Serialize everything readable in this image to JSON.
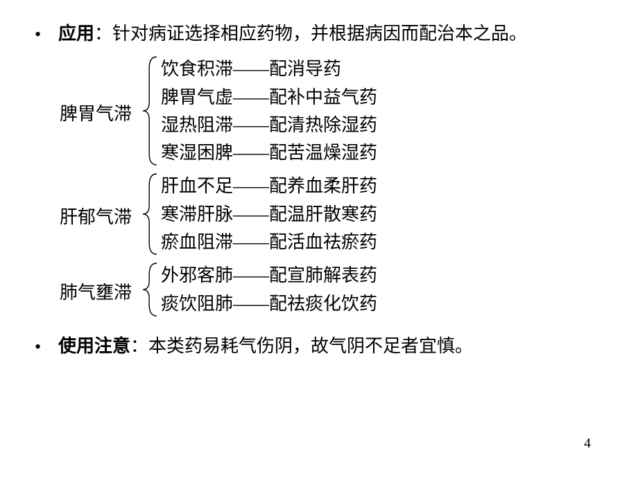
{
  "bullet1": {
    "label": "应用",
    "colon": "：",
    "text": "针对病证选择相应药物，并根据病因而配治本之品。"
  },
  "groups": [
    {
      "label": "脾胃气滞",
      "items": [
        "饮食积滞——配消导药",
        "脾胃气虚——配补中益气药",
        "湿热阻滞——配清热除湿药",
        "寒湿困脾——配苦温燥湿药"
      ]
    },
    {
      "label": "肝郁气滞",
      "items": [
        "肝血不足——配养血柔肝药",
        "寒滞肝脉——配温肝散寒药",
        "瘀血阻滞——配活血祛瘀药"
      ]
    },
    {
      "label": "肺气壅滞",
      "items": [
        "外邪客肺——配宣肺解表药",
        "痰饮阻肺——配祛痰化饮药"
      ]
    }
  ],
  "bullet2": {
    "label": "使用注意",
    "colon": "：",
    "text": "本类药易耗气伤阴，故气阴不足者宜慎。"
  },
  "pageNumber": "4",
  "style": {
    "braceStroke": "#000000",
    "braceWidth": 1.4
  }
}
